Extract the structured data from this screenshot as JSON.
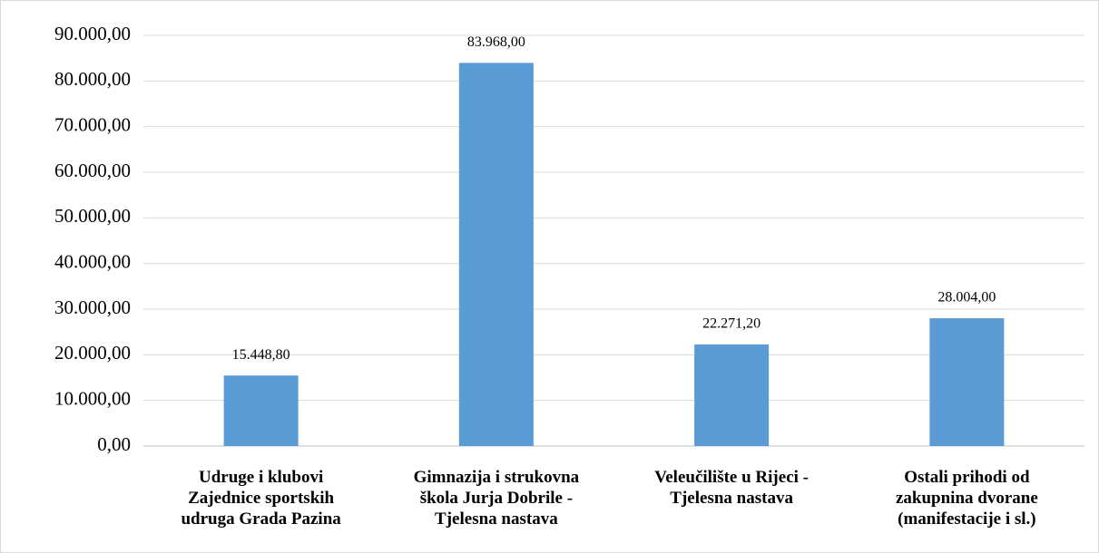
{
  "chart_data": {
    "type": "bar",
    "categories": [
      "Udruge i klubovi\nZajednice sportskih\nudruga Grada Pazina",
      "Gimnazija i strukovna\nškola Jurja Dobrile -\nTjelesna nastava",
      "Veleučilište u Rijeci -\nTjelesna nastava",
      "Ostali prihodi od\nzakupnina dvorane\n(manifestacije i sl.)"
    ],
    "values": [
      15448.8,
      83968,
      22271.2,
      28004
    ],
    "value_labels": [
      "15.448,80",
      "83.968,00",
      "22.271,20",
      "28.004,00"
    ],
    "color": "#5b9bd5",
    "ylim": [
      0,
      90000
    ],
    "yticks": [
      {
        "value": 0,
        "label": "0,00"
      },
      {
        "value": 10000,
        "label": "10.000,00"
      },
      {
        "value": 20000,
        "label": "20.000,00"
      },
      {
        "value": 30000,
        "label": "30.000,00"
      },
      {
        "value": 40000,
        "label": "40.000,00"
      },
      {
        "value": 50000,
        "label": "50.000,00"
      },
      {
        "value": 60000,
        "label": "60.000,00"
      },
      {
        "value": 70000,
        "label": "70.000,00"
      },
      {
        "value": 80000,
        "label": "80.000,00"
      },
      {
        "value": 90000,
        "label": "90.000,00"
      }
    ],
    "grid": true
  }
}
